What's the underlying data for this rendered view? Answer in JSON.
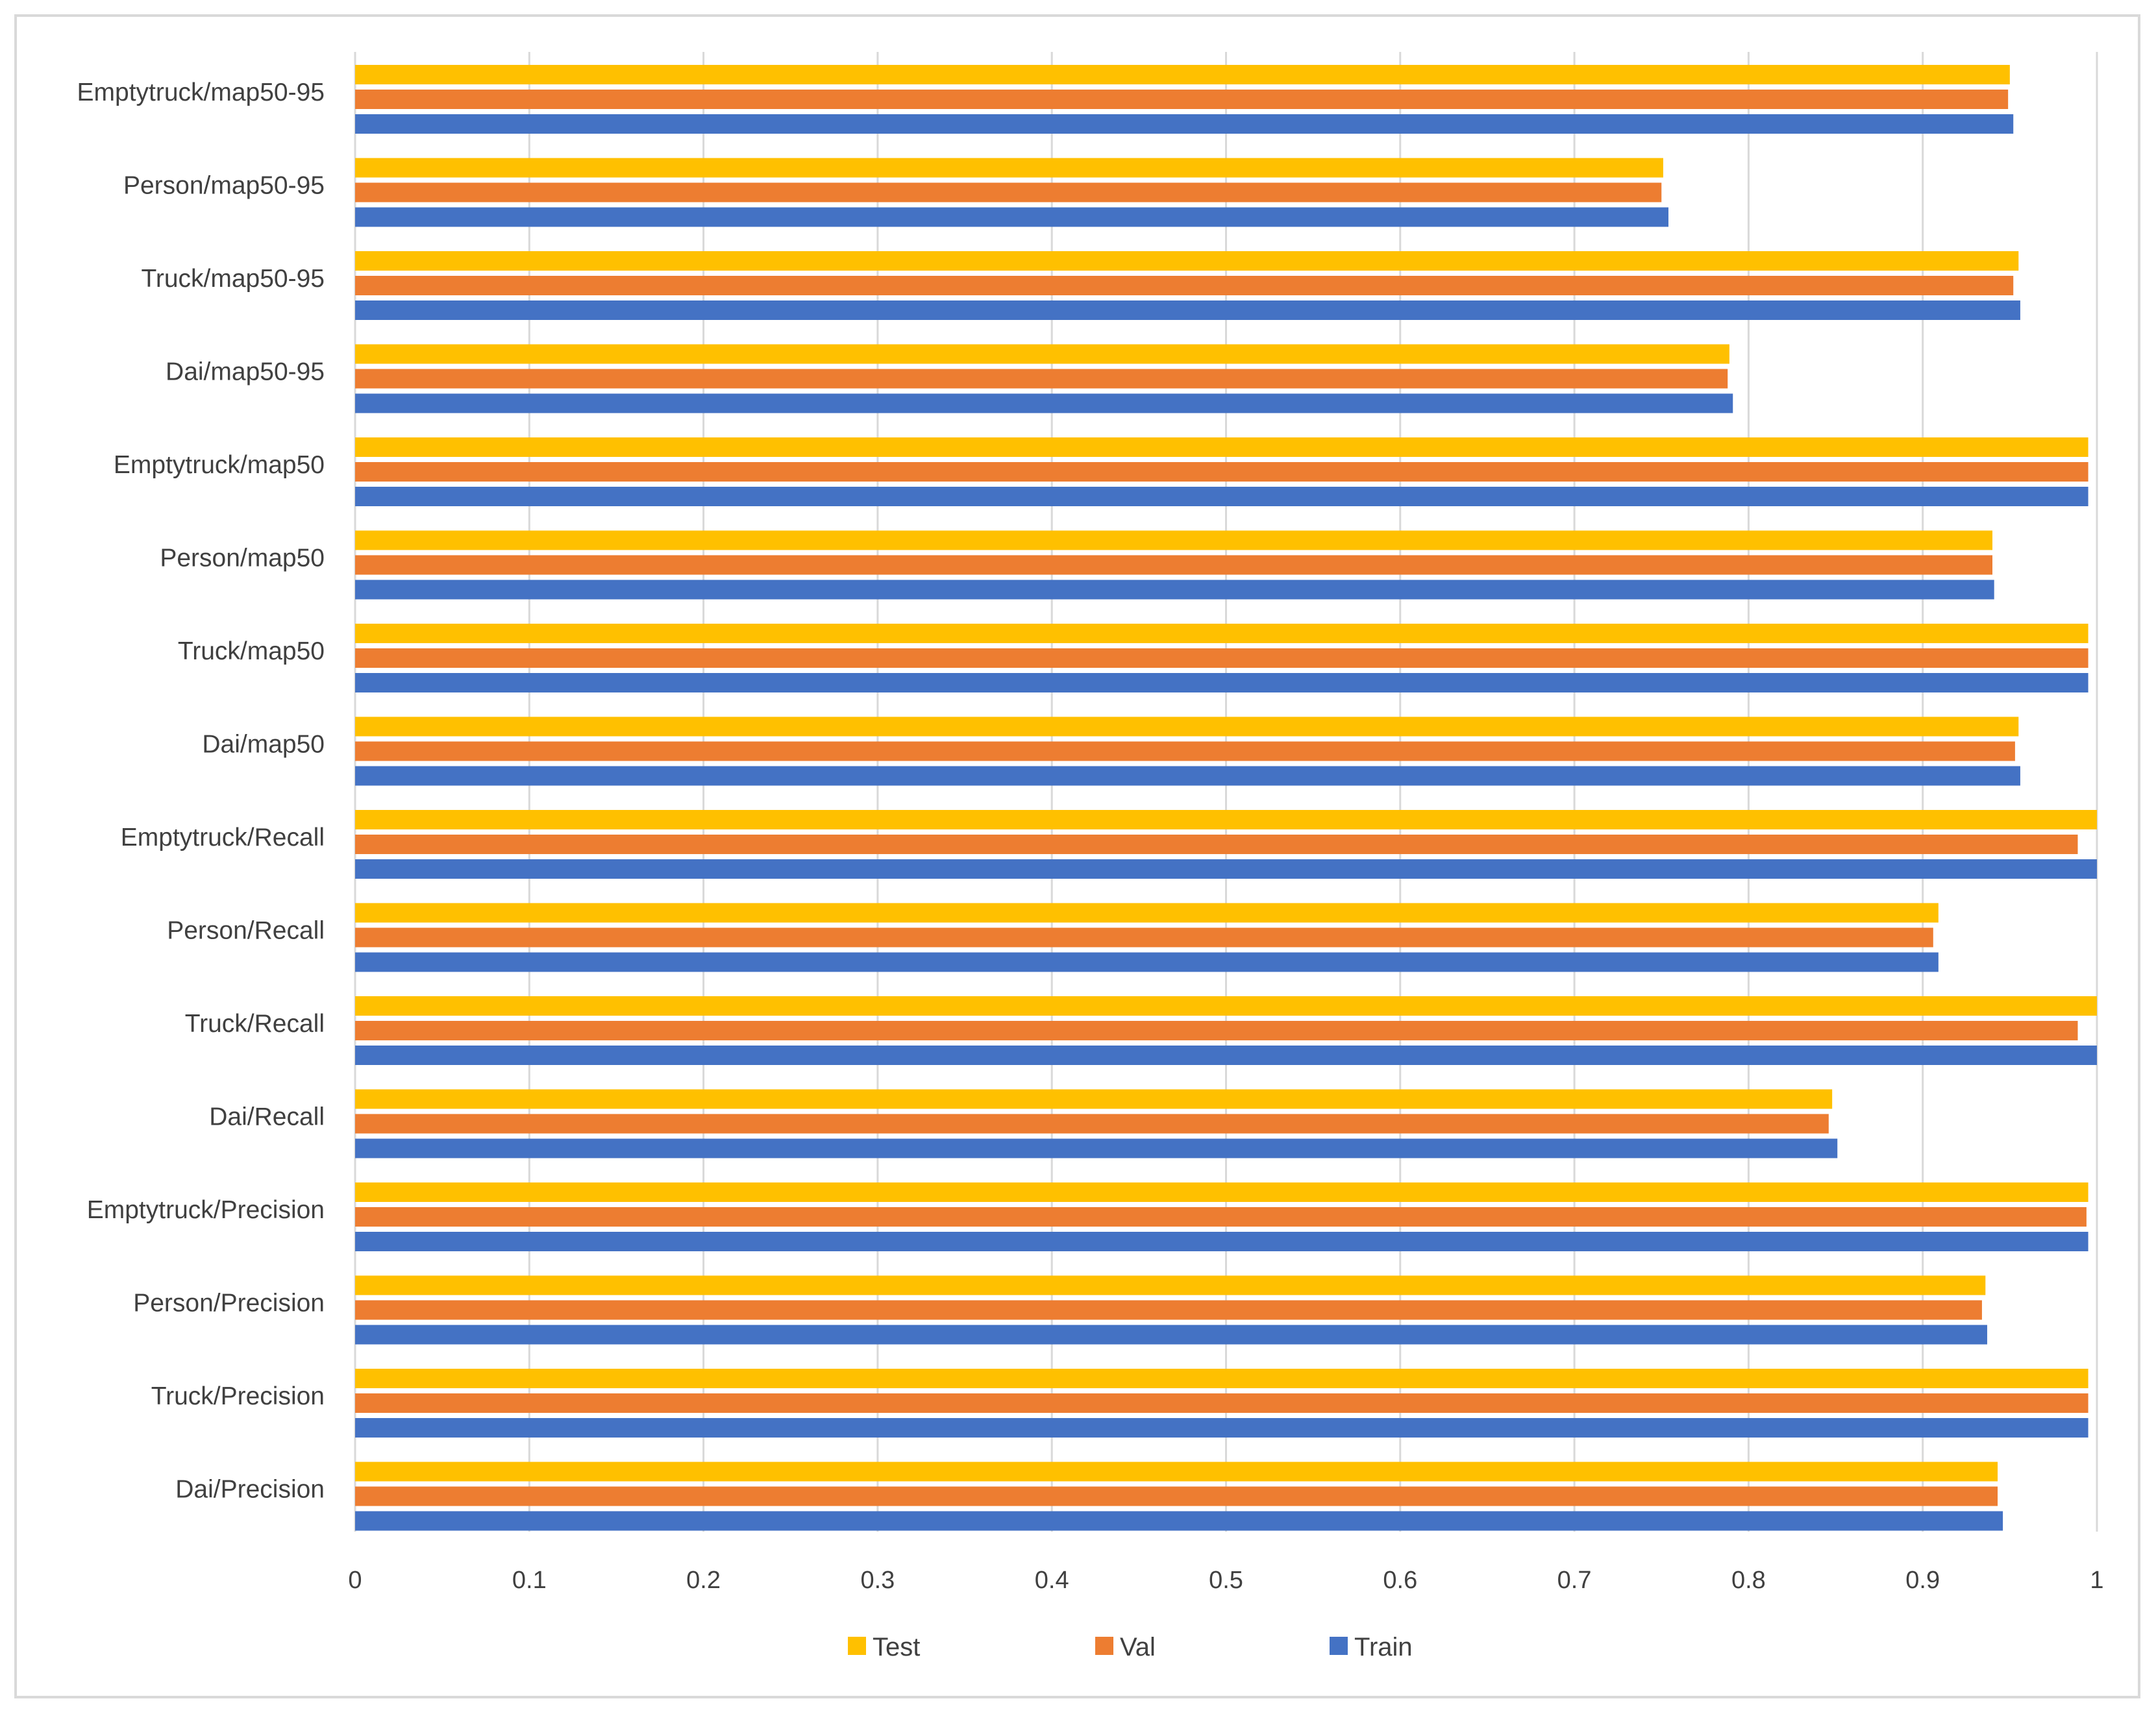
{
  "chart_data": {
    "type": "bar",
    "orientation": "horizontal",
    "title": "",
    "xlabel": "",
    "ylabel": "",
    "xlim": [
      0,
      1
    ],
    "xticks": [
      "0",
      "0.1",
      "0.2",
      "0.3",
      "0.4",
      "0.5",
      "0.6",
      "0.7",
      "0.8",
      "0.9",
      "1"
    ],
    "grid": "vertical",
    "legend_position": "bottom",
    "categories": [
      "Emptytruck/map50-95",
      "Person/map50-95",
      "Truck/map50-95",
      "Dai/map50-95",
      "Emptytruck/map50",
      "Person/map50",
      "Truck/map50",
      "Dai/map50",
      "Emptytruck/Recall",
      "Person/Recall",
      "Truck/Recall",
      "Dai/Recall",
      "Emptytruck/Precision",
      "Person/Precision",
      "Truck/Precision",
      "Dai/Precision"
    ],
    "series": [
      {
        "name": "Test",
        "color": "#ffc000",
        "values": [
          0.95,
          0.751,
          0.955,
          0.789,
          0.995,
          0.94,
          0.995,
          0.955,
          1.0,
          0.909,
          1.0,
          0.848,
          0.995,
          0.936,
          0.995,
          0.943
        ]
      },
      {
        "name": "Val",
        "color": "#ed7d31",
        "values": [
          0.949,
          0.75,
          0.952,
          0.788,
          0.995,
          0.94,
          0.995,
          0.953,
          0.989,
          0.906,
          0.989,
          0.846,
          0.994,
          0.934,
          0.995,
          0.943
        ]
      },
      {
        "name": "Train",
        "color": "#4472c4",
        "values": [
          0.952,
          0.754,
          0.956,
          0.791,
          0.995,
          0.941,
          0.995,
          0.956,
          1.0,
          0.909,
          1.0,
          0.851,
          0.995,
          0.937,
          0.995,
          0.946
        ]
      }
    ]
  }
}
